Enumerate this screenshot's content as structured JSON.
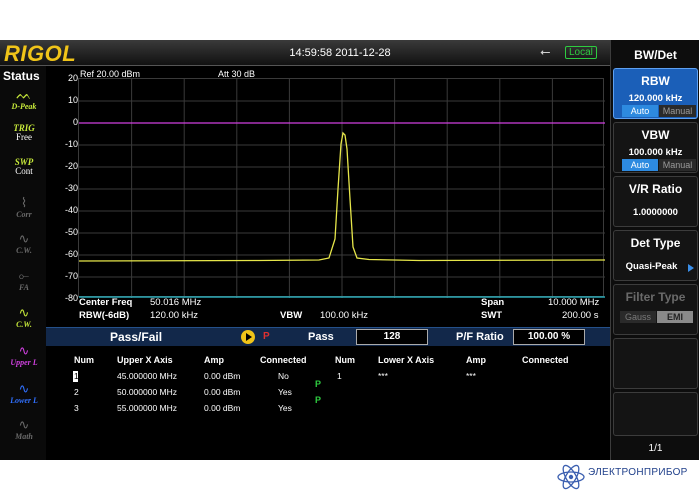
{
  "header": {
    "logo": "RIGOL",
    "datetime": "14:59:58 2011-12-28",
    "local_badge": "Local",
    "usb_icon": "usb-icon"
  },
  "status": {
    "title": "Status",
    "items": [
      {
        "icon": "peak-detector-icon",
        "label": "D-Peak",
        "color": "#c6e83a"
      },
      {
        "icon": "trigger-icon",
        "label": "TRIG",
        "sub": "Free",
        "color": "#c6e83a"
      },
      {
        "icon": "sweep-icon",
        "label": "SWP",
        "sub": "Cont",
        "color": "#c6e83a"
      },
      {
        "icon": "correction-icon",
        "label": "Corr",
        "color": "#6a6a6a"
      },
      {
        "icon": "cw-icon",
        "label": "C.W.",
        "color": "#6a6a6a"
      },
      {
        "icon": "fa-icon",
        "label": "FA",
        "color": "#6a6a6a"
      },
      {
        "icon": "cursor-wave-icon",
        "label": "C.W.",
        "color": "#c6e83a"
      },
      {
        "icon": "upper-limit-icon",
        "label": "Upper L",
        "color": "#d040e0"
      },
      {
        "icon": "lower-limit-icon",
        "label": "Lower L",
        "color": "#3070ff"
      },
      {
        "icon": "math-icon",
        "label": "Math",
        "color": "#6a6a6a"
      }
    ]
  },
  "plot": {
    "ref": "Ref 20.00 dBm",
    "att": "Att 30 dB",
    "yticks": [
      "20",
      "10",
      "0",
      "-10",
      "-20",
      "-30",
      "-40",
      "-50",
      "-60",
      "-70",
      "-80"
    ]
  },
  "info": {
    "center_freq_label": "Center Freq",
    "center_freq_value": "50.016 MHz",
    "rbw_label": "RBW(-6dB)",
    "rbw_value": "120.00 kHz",
    "vbw_label": "VBW",
    "vbw_value": "100.00 kHz",
    "span_label": "Span",
    "span_value": "10.000 MHz",
    "swt_label": "SWT",
    "swt_value": "200.00 s"
  },
  "passfail": {
    "title": "Pass/Fail",
    "p_mark": "P",
    "pass_label": "Pass",
    "pass_value": "128",
    "ratio_label": "P/F Ratio",
    "ratio_value": "100.00 %",
    "upper_headers": [
      "Num",
      "Upper X Axis",
      "Amp",
      "Connected"
    ],
    "lower_headers": [
      "Num",
      "Lower X Axis",
      "Amp",
      "Connected"
    ],
    "upper_rows": [
      {
        "num": "1",
        "x": "45.000000 MHz",
        "amp": "0.00 dBm",
        "conn": "No"
      },
      {
        "num": "2",
        "x": "50.000000 MHz",
        "amp": "0.00 dBm",
        "conn": "Yes"
      },
      {
        "num": "3",
        "x": "55.000000 MHz",
        "amp": "0.00 dBm",
        "conn": "Yes"
      }
    ],
    "lower_rows": [
      {
        "num": "1",
        "x": "***",
        "amp": "***"
      }
    ],
    "marks": [
      "P",
      "P"
    ]
  },
  "menu": {
    "title": "BW/Det",
    "rbw": {
      "label": "RBW",
      "value": "120.000 kHz",
      "auto": "Auto",
      "manual": "Manual"
    },
    "vbw": {
      "label": "VBW",
      "value": "100.000 kHz",
      "auto": "Auto",
      "manual": "Manual"
    },
    "vr": {
      "label": "V/R Ratio",
      "value": "1.0000000"
    },
    "det": {
      "label": "Det Type",
      "value": "Quasi-Peak"
    },
    "filter": {
      "label": "Filter Type",
      "opt1": "Gauss",
      "opt2": "EMI"
    },
    "page": "1/1"
  },
  "watermark": {
    "text": "ЭЛЕКТРОНПРИБОР"
  },
  "colors": {
    "trace": "#e6e64a",
    "limit": "#d040e0",
    "bottom_line": "#30c8d8",
    "grid": "#3a3a3a"
  }
}
